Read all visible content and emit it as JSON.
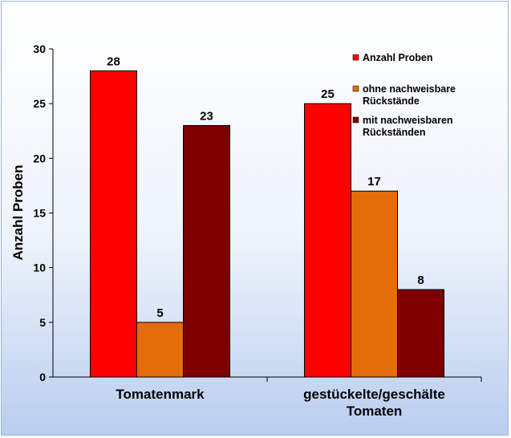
{
  "chart_data": {
    "type": "bar",
    "categories": [
      "Tomatenmark",
      "gestückelte/geschälte Tomaten"
    ],
    "category_lines": [
      [
        "Tomatenmark"
      ],
      [
        "gestückelte/geschälte",
        "Tomaten"
      ]
    ],
    "series": [
      {
        "name": "Anzahl Proben",
        "name_lines": [
          "Anzahl Proben"
        ],
        "values": [
          28,
          25
        ],
        "color": "#ff0000"
      },
      {
        "name": "ohne nachweisbare Rückstände",
        "name_lines": [
          "ohne nachweisbare",
          "Rückstände"
        ],
        "values": [
          5,
          17
        ],
        "color": "#e46c0a"
      },
      {
        "name": "mit nachweisbaren Rückständen",
        "name_lines": [
          "mit nachweisbaren",
          "Rückständen"
        ],
        "values": [
          23,
          8
        ],
        "color": "#7f0000"
      }
    ],
    "ylabel": "Anzahl Proben",
    "ylim": [
      0,
      30
    ],
    "yticks": [
      0,
      5,
      10,
      15,
      20,
      25,
      30
    ],
    "grid": false,
    "legend": "top-right"
  }
}
